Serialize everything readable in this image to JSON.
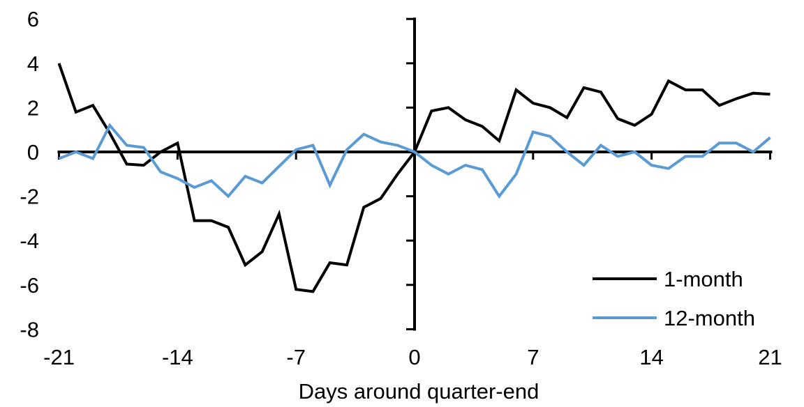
{
  "chart_data": {
    "type": "line",
    "xlabel": "Days around quarter-end",
    "ylabel": "",
    "title": "",
    "x": [
      -21,
      -20,
      -19,
      -18,
      -17,
      -16,
      -15,
      -14,
      -13,
      -12,
      -11,
      -10,
      -9,
      -8,
      -7,
      -6,
      -5,
      -4,
      -3,
      -2,
      -1,
      0,
      1,
      2,
      3,
      4,
      5,
      6,
      7,
      8,
      9,
      10,
      11,
      12,
      13,
      14,
      15,
      16,
      17,
      18,
      19,
      20,
      21
    ],
    "series": [
      {
        "name": "1-month",
        "color": "#000000",
        "values": [
          4.0,
          1.8,
          2.1,
          0.85,
          -0.55,
          -0.6,
          0.0,
          0.4,
          -3.1,
          -3.1,
          -3.4,
          -5.1,
          -4.5,
          -2.8,
          -6.2,
          -6.3,
          -5.0,
          -5.1,
          -2.5,
          -2.1,
          -1.0,
          0.0,
          1.85,
          2.0,
          1.45,
          1.15,
          0.5,
          2.8,
          2.2,
          2.0,
          1.55,
          2.9,
          2.7,
          1.5,
          1.2,
          1.7,
          3.2,
          2.8,
          2.8,
          2.1,
          2.4,
          2.65,
          2.6
        ]
      },
      {
        "name": "12-month",
        "color": "#5B9BD5",
        "values": [
          -0.3,
          0.0,
          -0.3,
          1.2,
          0.3,
          0.2,
          -0.9,
          -1.2,
          -1.6,
          -1.3,
          -2.0,
          -1.1,
          -1.4,
          -0.65,
          0.1,
          0.3,
          -1.5,
          0.1,
          0.8,
          0.45,
          0.3,
          0.0,
          -0.6,
          -1.0,
          -0.6,
          -0.8,
          -2.0,
          -1.0,
          0.9,
          0.7,
          0.0,
          -0.6,
          0.3,
          -0.2,
          0.0,
          -0.6,
          -0.75,
          -0.2,
          -0.2,
          0.4,
          0.4,
          0.0,
          0.65
        ]
      }
    ],
    "x_ticks": [
      -21,
      -14,
      -7,
      0,
      7,
      14,
      21
    ],
    "x_tick_labels": [
      "-21",
      "-14",
      "-7",
      "0",
      "7",
      "14",
      "21"
    ],
    "y_ticks": [
      6,
      4,
      2,
      0,
      -2,
      -4,
      -6,
      -8
    ],
    "y_tick_labels": [
      "6",
      "4",
      "2",
      "0",
      "-2",
      "-4",
      "-6",
      "-8"
    ],
    "xlim": [
      -21,
      21
    ],
    "ylim": [
      -8,
      6
    ],
    "grid": false,
    "axes_style": "x-axis drawn at y=0, y-axis drawn at x=0 (axes cross at origin), tick labels at chart edges",
    "legend_position": "inside lower right"
  }
}
